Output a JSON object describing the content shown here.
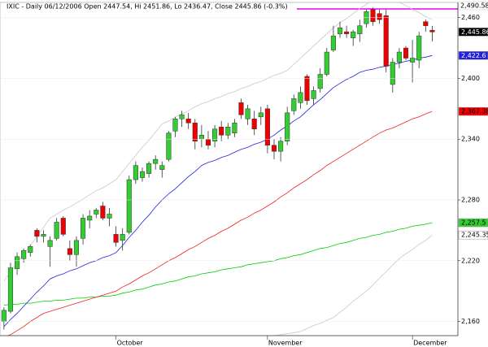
{
  "chart_data": {
    "type": "candlestick",
    "title": "IXIC - Daily 06/12/2006 Open 2447.54, Hi 2451.86, Lo 2436.47, Close 2445.86 (-0.3%)",
    "up_color": "#33cc33",
    "down_color": "#ee0000",
    "xlim": [
      -0.6,
      68.9
    ],
    "ylim": [
      2146,
      2475
    ],
    "yticks": [
      {
        "value": 2160,
        "label": "2,160"
      },
      {
        "value": 2220,
        "label": "2,220"
      },
      {
        "value": 2280,
        "label": "2,280"
      },
      {
        "value": 2340,
        "label": "2,340"
      },
      {
        "value": 2400,
        "label": "2,400"
      },
      {
        "value": 2460,
        "label": "2,460"
      }
    ],
    "xticks": [
      {
        "value": 17,
        "label": "October"
      },
      {
        "value": 40,
        "label": "November"
      },
      {
        "value": 62,
        "label": "December"
      }
    ],
    "open": [
      2160,
      2170,
      2212,
      2222,
      2228,
      2250,
      2244,
      2234,
      2242,
      2262,
      2232,
      2226,
      2242,
      2260,
      2266,
      2274,
      2262,
      2246,
      2240,
      2248,
      2300,
      2302,
      2306,
      2316,
      2310,
      2320,
      2348,
      2360,
      2360,
      2356,
      2340,
      2340,
      2338,
      2352,
      2344,
      2346,
      2376,
      2360,
      2360,
      2362,
      2370,
      2334,
      2328,
      2338,
      2368,
      2376,
      2402,
      2380,
      2390,
      2404,
      2428,
      2444,
      2446,
      2440,
      2444,
      2454,
      2468,
      2464,
      2462,
      2394,
      2416,
      2430,
      2416,
      2418,
      2456,
      2447.54
    ],
    "high": [
      2174,
      2218,
      2228,
      2232,
      2236,
      2252,
      2250,
      2244,
      2262,
      2264,
      2240,
      2244,
      2266,
      2270,
      2272,
      2278,
      2272,
      2254,
      2252,
      2304,
      2318,
      2312,
      2318,
      2324,
      2318,
      2348,
      2362,
      2368,
      2366,
      2360,
      2354,
      2348,
      2354,
      2358,
      2356,
      2360,
      2380,
      2374,
      2368,
      2372,
      2374,
      2340,
      2342,
      2372,
      2384,
      2392,
      2404,
      2392,
      2410,
      2430,
      2452,
      2456,
      2452,
      2448,
      2458,
      2468,
      2470,
      2468,
      2468,
      2420,
      2430,
      2432,
      2438,
      2446,
      2458,
      2451.86
    ],
    "low": [
      2152,
      2168,
      2206,
      2218,
      2224,
      2238,
      2238,
      2214,
      2240,
      2244,
      2220,
      2214,
      2236,
      2252,
      2262,
      2260,
      2254,
      2234,
      2230,
      2246,
      2296,
      2298,
      2302,
      2310,
      2302,
      2318,
      2342,
      2352,
      2350,
      2330,
      2332,
      2330,
      2332,
      2338,
      2340,
      2342,
      2360,
      2354,
      2344,
      2354,
      2326,
      2320,
      2318,
      2334,
      2364,
      2370,
      2374,
      2374,
      2386,
      2402,
      2426,
      2440,
      2440,
      2432,
      2436,
      2450,
      2452,
      2454,
      2406,
      2386,
      2410,
      2418,
      2396,
      2410,
      2446,
      2436.47
    ],
    "close": [
      2171,
      2213,
      2224,
      2230,
      2234,
      2244,
      2246,
      2240,
      2258,
      2246,
      2226,
      2240,
      2262,
      2264,
      2270,
      2262,
      2266,
      2238,
      2246,
      2300,
      2314,
      2308,
      2316,
      2320,
      2314,
      2346,
      2360,
      2364,
      2356,
      2338,
      2344,
      2334,
      2350,
      2344,
      2352,
      2356,
      2364,
      2370,
      2350,
      2366,
      2334,
      2328,
      2338,
      2366,
      2380,
      2386,
      2378,
      2388,
      2404,
      2426,
      2442,
      2450,
      2444,
      2446,
      2452,
      2466,
      2456,
      2458,
      2412,
      2416,
      2426,
      2420,
      2420,
      2442,
      2452,
      2445.86
    ],
    "series": [
      {
        "color": "#c8c8c8",
        "values": [
          2200,
          2209,
          2218,
          2227,
          2235,
          2244,
          2253,
          2262,
          2266,
          2270,
          2273,
          2277,
          2281,
          2285,
          2289,
          2292,
          2296,
          2300,
          2308,
          2316,
          2324,
          2332,
          2339,
          2347,
          2355,
          2358,
          2362,
          2365,
          2368,
          2372,
          2375,
          2377,
          2380,
          2382,
          2385,
          2387,
          2390,
          2392,
          2395,
          2397,
          2400,
          2403,
          2405,
          2408,
          2414,
          2420,
          2426,
          2432,
          2438,
          2444,
          2450,
          2455,
          2459,
          2464,
          2469,
          2473,
          2478,
          2478,
          2477,
          2476,
          2475,
          2472,
          2468,
          2465,
          2461,
          2458
        ]
      },
      {
        "color": "#c8c8c8",
        "values": [
          null,
          null,
          null,
          null,
          null,
          null,
          null,
          null,
          null,
          null,
          null,
          null,
          null,
          null,
          null,
          null,
          null,
          null,
          null,
          null,
          null,
          null,
          null,
          null,
          null,
          null,
          null,
          null,
          null,
          null,
          null,
          null,
          null,
          null,
          null,
          null,
          null,
          null,
          2140,
          2142,
          2144,
          2146,
          2147,
          2148,
          2149,
          2150,
          2153,
          2156,
          2158,
          2161,
          2164,
          2169,
          2174,
          2180,
          2185,
          2190,
          2196,
          2203,
          2209,
          2216,
          2222,
          2227,
          2231,
          2236,
          2240,
          2245.35
        ]
      },
      {
        "color": "#00cc00",
        "values": [
          2176,
          2177,
          2177,
          2178,
          2178,
          2179,
          2180,
          2180,
          2181,
          2181,
          2182,
          2183,
          2183,
          2184,
          2184,
          2185,
          2185,
          2186,
          2188,
          2189,
          2191,
          2192,
          2194,
          2196,
          2197,
          2199,
          2200,
          2202,
          2204,
          2205,
          2207,
          2208,
          2209,
          2211,
          2212,
          2213,
          2214,
          2216,
          2217,
          2218,
          2219,
          2220,
          2222,
          2223,
          2225,
          2226,
          2228,
          2230,
          2232,
          2233,
          2235,
          2237,
          2238,
          2240,
          2242,
          2243,
          2245,
          2246,
          2248,
          2249,
          2251,
          2252,
          2254,
          2255,
          2256,
          2257.5
        ]
      },
      {
        "color": "#ee2222",
        "values": [
          2144,
          2147,
          2151,
          2155,
          2160,
          2164,
          2168,
          2170,
          2172,
          2174,
          2176,
          2178,
          2180,
          2182,
          2184,
          2186,
          2188,
          2190,
          2194,
          2197,
          2201,
          2205,
          2208,
          2212,
          2216,
          2220,
          2223,
          2227,
          2231,
          2234,
          2238,
          2242,
          2245,
          2249,
          2252,
          2256,
          2260,
          2263,
          2267,
          2270,
          2274,
          2278,
          2283,
          2287,
          2292,
          2296,
          2300,
          2305,
          2309,
          2314,
          2318,
          2322,
          2326,
          2330,
          2334,
          2338,
          2342,
          2346,
          2349,
          2351,
          2354,
          2357,
          2360,
          2362,
          2365,
          2367.38
        ]
      },
      {
        "color": "#2222dd",
        "values": [
          2155,
          2162,
          2168,
          2175,
          2182,
          2189,
          2195,
          2202,
          2205,
          2207,
          2210,
          2212,
          2215,
          2218,
          2220,
          2223,
          2225,
          2228,
          2235,
          2243,
          2250,
          2258,
          2265,
          2273,
          2280,
          2286,
          2291,
          2297,
          2303,
          2308,
          2314,
          2317,
          2319,
          2322,
          2324,
          2327,
          2330,
          2332,
          2335,
          2337,
          2340,
          2344,
          2349,
          2353,
          2358,
          2362,
          2368,
          2374,
          2379,
          2385,
          2391,
          2395,
          2399,
          2402,
          2406,
          2408,
          2409,
          2411,
          2412,
          2414,
          2415,
          2417,
          2418,
          2420,
          2421,
          2422.6
        ]
      }
    ],
    "price_labels": [
      {
        "value": 2445.86,
        "label": "2,445.86",
        "color": "#000000",
        "text_color": "#ffffff"
      },
      {
        "value": 2422.6,
        "label": "2,422.6",
        "color": "#2222dd",
        "text_color": "#ffffff"
      },
      {
        "value": 2367.38,
        "label": "2,367.38",
        "color": "#ee0000",
        "text_color": "#000000"
      },
      {
        "value": 2257.5,
        "label": "2,257.5",
        "color": "#33cc33",
        "text_color": "#000000"
      },
      {
        "value": 2245.35,
        "label": "2,245.35",
        "color": "#ffffff",
        "text_color": "#000000"
      }
    ],
    "resistance_label": "2,490.58",
    "resistance_color": "#ee00ee"
  }
}
